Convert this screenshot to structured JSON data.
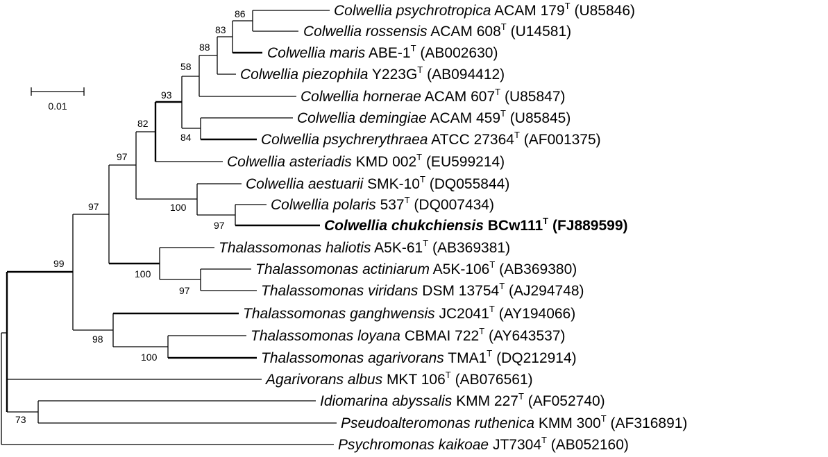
{
  "scale_bar": {
    "label": "0.01"
  },
  "taxa": [
    {
      "id": "psychrotropica",
      "genus_species": "Colwellia psychrotropica",
      "strain": "ACAM 179",
      "type": "T",
      "accession": "(U85846)"
    },
    {
      "id": "rossensis",
      "genus_species": "Colwellia rossensis",
      "strain": "ACAM 608",
      "type": "T",
      "accession": "(U14581)"
    },
    {
      "id": "maris",
      "genus_species": "Colwellia maris",
      "strain": "ABE-1",
      "type": "T",
      "accession": "(AB002630)"
    },
    {
      "id": "piezophila",
      "genus_species": "Colwellia piezophila",
      "strain": "Y223G",
      "type": "T",
      "accession": "(AB094412)"
    },
    {
      "id": "hornerae",
      "genus_species": "Colwellia hornerae",
      "strain": "ACAM 607",
      "type": "T",
      "accession": "(U85847)"
    },
    {
      "id": "demingiae",
      "genus_species": "Colwellia demingiae",
      "strain": "ACAM 459",
      "type": "T",
      "accession": "(U85845)"
    },
    {
      "id": "psychrerythraea",
      "genus_species": "Colwellia psychrerythraea",
      "strain": "ATCC 27364",
      "type": "T",
      "accession": "(AF001375)"
    },
    {
      "id": "asteriadis",
      "genus_species": "Colwellia asteriadis",
      "strain": "KMD 002",
      "type": "T",
      "accession": "(EU599214)"
    },
    {
      "id": "aestuarii",
      "genus_species": "Colwellia aestuarii",
      "strain": "SMK-10",
      "type": "T",
      "accession": "(DQ055844)"
    },
    {
      "id": "polaris",
      "genus_species": "Colwellia polaris",
      "strain": "537",
      "type": "T",
      "accession": "(DQ007434)"
    },
    {
      "id": "chukchiensis",
      "genus_species": "Colwellia chukchiensis",
      "strain": "BCw111",
      "type": "T",
      "accession": "(FJ889599)",
      "bold": true
    },
    {
      "id": "haliotis",
      "genus_species": "Thalassomonas haliotis",
      "strain": "A5K-61",
      "type": "T",
      "accession": "(AB369381)"
    },
    {
      "id": "actiniarum",
      "genus_species": "Thalassomonas actiniarum",
      "strain": "A5K-106",
      "type": "T",
      "accession": "(AB369380)"
    },
    {
      "id": "viridans",
      "genus_species": "Thalassomonas viridans",
      "strain": "DSM 13754",
      "type": "T",
      "accession": "(AJ294748)"
    },
    {
      "id": "ganghwensis",
      "genus_species": "Thalassomonas ganghwensis",
      "strain": "JC2041",
      "type": "T",
      "accession": "(AY194066)"
    },
    {
      "id": "loyana",
      "genus_species": "Thalassomonas loyana",
      "strain": "CBMAI 722",
      "type": "T",
      "accession": "(AY643537)"
    },
    {
      "id": "agarivorans_t",
      "genus_species": "Thalassomonas agarivorans",
      "strain": "TMA1",
      "type": "T",
      "accession": "(DQ212914)"
    },
    {
      "id": "albus",
      "genus_species": "Agarivorans albus",
      "strain": "MKT 106",
      "type": "T",
      "accession": "(AB076561)"
    },
    {
      "id": "abyssalis",
      "genus_species": "Idiomarina abyssalis",
      "strain": "KMM 227",
      "type": "T",
      "accession": "(AF052740)"
    },
    {
      "id": "ruthenica",
      "genus_species": "Pseudoalteromonas ruthenica",
      "strain": "KMM 300",
      "type": "T",
      "accession": "(AF316891)"
    },
    {
      "id": "kaikoae",
      "genus_species": "Psychromonas kaikoae",
      "strain": "JT7304",
      "type": "T",
      "accession": "(AB052160)"
    }
  ],
  "bootstrap": [
    {
      "node": "n_psychrotropica_rossensis",
      "value": "86"
    },
    {
      "node": "n_maris",
      "value": "83"
    },
    {
      "node": "n_piezophila",
      "value": "88"
    },
    {
      "node": "n_hornerae",
      "value": "58"
    },
    {
      "node": "n_colwellia_core",
      "value": "93"
    },
    {
      "node": "n_demingiae_psychrerythraea",
      "value": "84"
    },
    {
      "node": "n_asteriadis",
      "value": "82"
    },
    {
      "node": "n_colwellia",
      "value": "97"
    },
    {
      "node": "n_aestuarii_group",
      "value": "100"
    },
    {
      "node": "n_polaris_chukchiensis",
      "value": "97"
    },
    {
      "node": "n_colwellia_thalassomonas",
      "value": "97"
    },
    {
      "node": "n_thal_haliotis",
      "value": "100"
    },
    {
      "node": "n_actiniarum_viridans",
      "value": "97"
    },
    {
      "node": "n_family",
      "value": "99"
    },
    {
      "node": "n_ganghwensis_group",
      "value": "98"
    },
    {
      "node": "n_loyana_agarivorans",
      "value": "100"
    },
    {
      "node": "n_abyssalis_ruthenica",
      "value": "73"
    }
  ]
}
